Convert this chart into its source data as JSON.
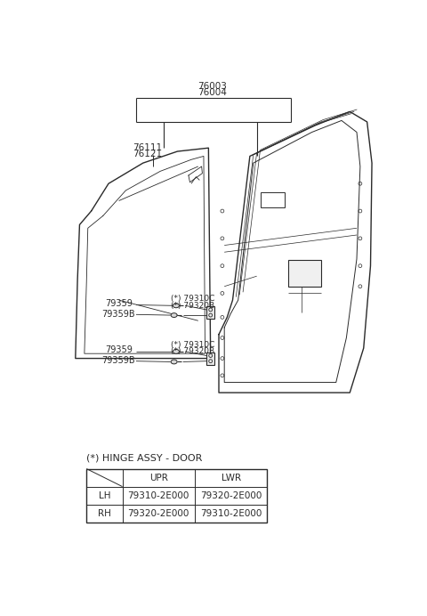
{
  "bg_color": "#ffffff",
  "line_color": "#2a2a2a",
  "title": "(*) HINGE ASSY - DOOR",
  "table_header": [
    "",
    "UPR",
    "LWR"
  ],
  "table_rows": [
    [
      "LH",
      "79310-2E000",
      "79320-2E000"
    ],
    [
      "RH",
      "79320-2E000",
      "79310-2E000"
    ]
  ],
  "part_labels_top": [
    "76003",
    "76004"
  ],
  "part_labels_left": [
    "76111",
    "76121"
  ],
  "hinge_labels_upper": [
    "(*) 79310C",
    "(*) 79320B"
  ],
  "hinge_labels_lower": [
    "(*) 79310C",
    "(*) 79320B"
  ],
  "bolt_labels": [
    "79359",
    "79359B",
    "79359",
    "79359B"
  ]
}
